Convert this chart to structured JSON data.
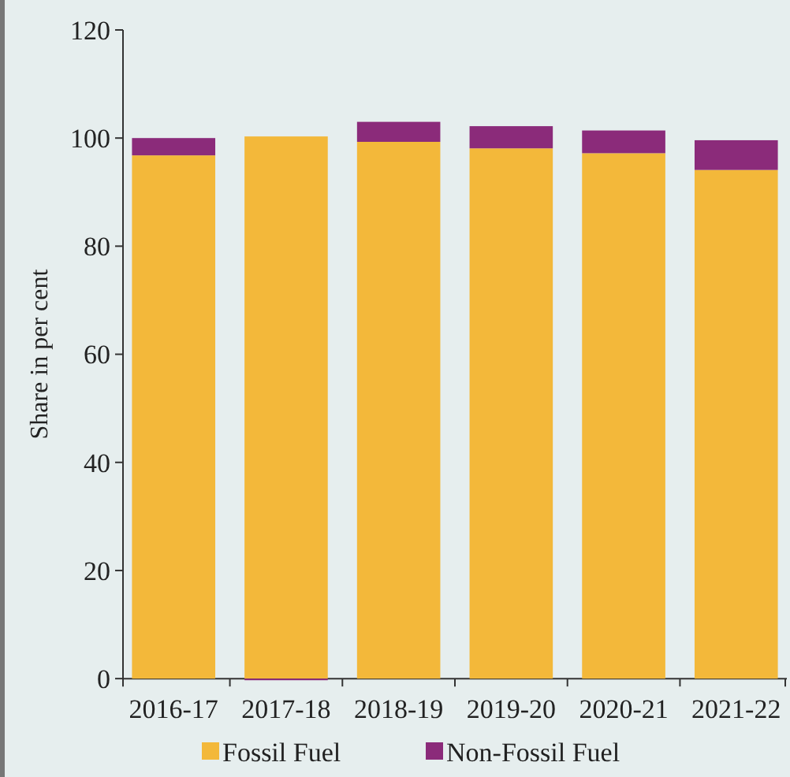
{
  "chart_data": {
    "type": "bar",
    "stacked": true,
    "ylabel": "Share in per cent",
    "categories": [
      "2016-17",
      "2017-18",
      "2018-19",
      "2019-20",
      "2020-21",
      "2021-22"
    ],
    "series": [
      {
        "name": "Fossil Fuel",
        "color": "#f3b83a",
        "values": [
          96.8,
          100.3,
          99.3,
          98.1,
          97.2,
          94.1
        ]
      },
      {
        "name": "Non-Fossil Fuel",
        "color": "#8b2b7a",
        "values": [
          3.2,
          -0.3,
          3.7,
          4.1,
          4.2,
          5.5
        ]
      }
    ],
    "ylim": [
      -1,
      120
    ],
    "yticks": [
      0,
      20,
      40,
      60,
      80,
      100,
      120
    ],
    "grid": false,
    "legend": "bottom"
  }
}
